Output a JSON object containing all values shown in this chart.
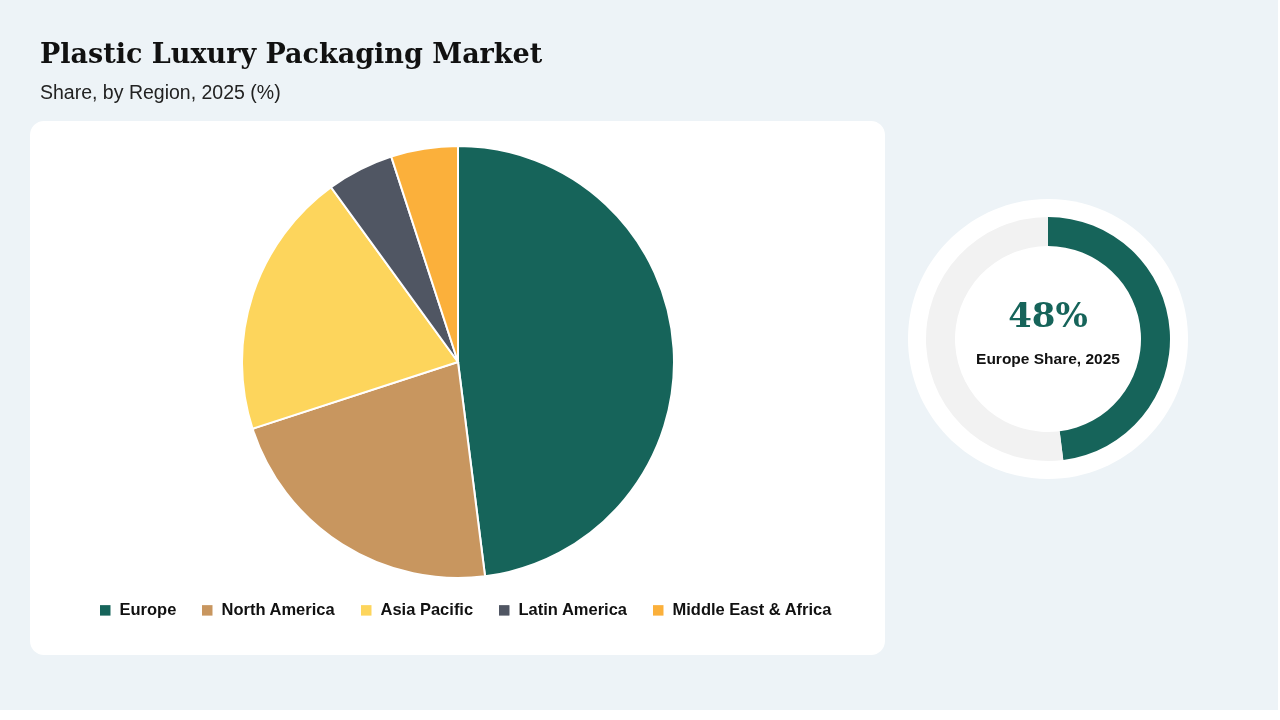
{
  "chart_data": [
    {
      "type": "pie",
      "title": "Plastic Luxury Packaging Market",
      "subtitle": "Share, by Region, 2025 (%)",
      "categories": [
        "Europe",
        "North America",
        "Asia Pacific",
        "Latin America",
        "Middle East & Africa"
      ],
      "values": [
        48,
        22,
        20,
        5,
        5
      ],
      "colors": [
        "#16645a",
        "#c8965f",
        "#fdd55c",
        "#505663",
        "#fbb03b"
      ],
      "legend": "bottom"
    },
    {
      "type": "donut",
      "categories": [
        null,
        null
      ],
      "values": [
        48,
        52
      ],
      "colors": [
        "#16645a",
        "#f2f2f2"
      ],
      "value_labels": [
        "48%",
        null
      ],
      "annotations": [
        "Europe Share, 2025"
      ]
    }
  ]
}
